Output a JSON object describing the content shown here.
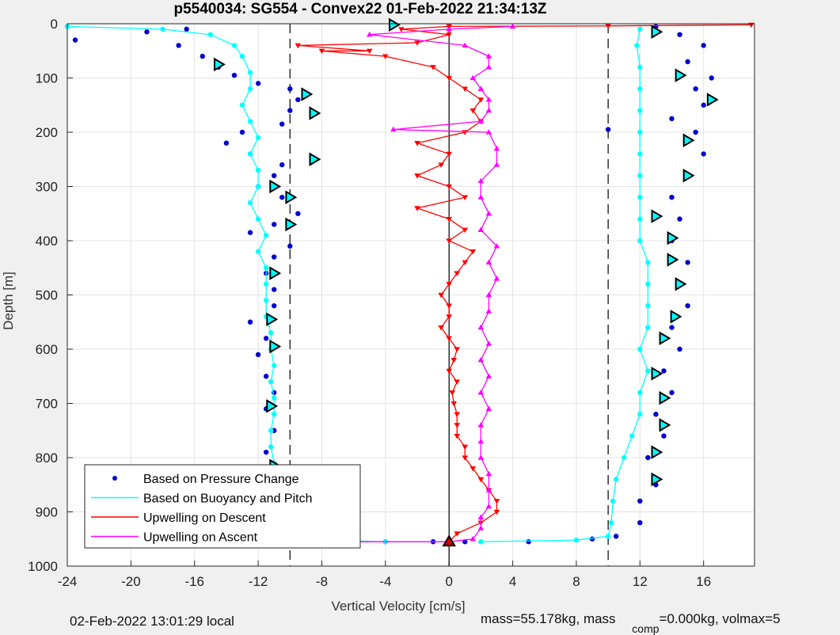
{
  "chart_data": {
    "type": "scatter",
    "title": "p5540034: SG554 - Convex22 01-Feb-2022 21:34:13Z",
    "xlabel": "Vertical Velocity [cm/s]",
    "ylabel": "Depth [m]",
    "xlim": [
      -24,
      19.2
    ],
    "ylim": [
      0,
      1000
    ],
    "y_reversed": true,
    "grid": true,
    "xticks": [
      -24,
      -20,
      -16,
      -12,
      -8,
      -4,
      0,
      4,
      8,
      12,
      16
    ],
    "yticks": [
      0,
      100,
      200,
      300,
      400,
      500,
      600,
      700,
      800,
      900,
      1000
    ],
    "reference_lines": {
      "dashed_x": [
        -10,
        10
      ],
      "solid_x": [
        0
      ]
    },
    "legend_position": "bottom-left",
    "series": [
      {
        "name": "Based on Pressure Change",
        "color": "#0000cc",
        "marker": "dot",
        "line": false,
        "descent": [
          [
            -23.5,
            30
          ],
          [
            -19,
            15
          ],
          [
            -16.5,
            10
          ],
          [
            -17,
            40
          ],
          [
            -15.5,
            60
          ],
          [
            -14.5,
            80
          ],
          [
            -13.5,
            95
          ],
          [
            -12,
            110
          ],
          [
            -10,
            120
          ],
          [
            -9.5,
            140
          ],
          [
            -10,
            160
          ],
          [
            -10.5,
            185
          ],
          [
            -13,
            200
          ],
          [
            -14,
            220
          ],
          [
            -12.5,
            240
          ],
          [
            -10.5,
            260
          ],
          [
            -11,
            280
          ],
          [
            -12,
            300
          ],
          [
            -10.5,
            320
          ],
          [
            -9.5,
            350
          ],
          [
            -11,
            370
          ],
          [
            -12.5,
            385
          ],
          [
            -10,
            410
          ],
          [
            -11,
            430
          ],
          [
            -11.5,
            460
          ],
          [
            -11,
            490
          ],
          [
            -11,
            520
          ],
          [
            -12.5,
            550
          ],
          [
            -11.5,
            580
          ],
          [
            -12,
            610
          ],
          [
            -11.5,
            650
          ],
          [
            -11,
            680
          ],
          [
            -11.5,
            710
          ],
          [
            -11,
            750
          ],
          [
            -11.5,
            790
          ],
          [
            -11,
            820
          ],
          [
            -10.5,
            850
          ],
          [
            -9.5,
            880
          ],
          [
            -10.5,
            910
          ],
          [
            -11,
            940
          ],
          [
            -8,
            955
          ],
          [
            -4,
            955
          ],
          [
            -1,
            955
          ]
        ],
        "ascent": [
          [
            1,
            955
          ],
          [
            5,
            955
          ],
          [
            9,
            950
          ],
          [
            10.5,
            945
          ],
          [
            12,
            920
          ],
          [
            12,
            880
          ],
          [
            13,
            850
          ],
          [
            12.5,
            800
          ],
          [
            13.5,
            760
          ],
          [
            13,
            720
          ],
          [
            14,
            680
          ],
          [
            13.5,
            640
          ],
          [
            14.5,
            600
          ],
          [
            14,
            560
          ],
          [
            15,
            520
          ],
          [
            14.5,
            480
          ],
          [
            15,
            440
          ],
          [
            14,
            400
          ],
          [
            14.5,
            360
          ],
          [
            14,
            320
          ],
          [
            15,
            280
          ],
          [
            16,
            240
          ],
          [
            15.5,
            200
          ],
          [
            10,
            195
          ],
          [
            14,
            175
          ],
          [
            16,
            150
          ],
          [
            15.5,
            120
          ],
          [
            16.5,
            100
          ],
          [
            15,
            70
          ],
          [
            16,
            40
          ],
          [
            14.5,
            20
          ],
          [
            13,
            5
          ]
        ]
      },
      {
        "name": "Based on Buoyancy and Pitch",
        "color": "#00ffff",
        "marker": "dot",
        "line": true,
        "descent": [
          [
            -24,
            5
          ],
          [
            -18,
            10
          ],
          [
            -15,
            20
          ],
          [
            -13.5,
            40
          ],
          [
            -13,
            60
          ],
          [
            -12.5,
            90
          ],
          [
            -12.5,
            120
          ],
          [
            -13,
            150
          ],
          [
            -12.5,
            180
          ],
          [
            -12,
            210
          ],
          [
            -12.5,
            240
          ],
          [
            -12,
            270
          ],
          [
            -12,
            300
          ],
          [
            -12.5,
            330
          ],
          [
            -12,
            360
          ],
          [
            -11.5,
            390
          ],
          [
            -12,
            420
          ],
          [
            -11.5,
            450
          ],
          [
            -11.5,
            480
          ],
          [
            -11.5,
            510
          ],
          [
            -11.5,
            540
          ],
          [
            -11.2,
            570
          ],
          [
            -11.2,
            600
          ],
          [
            -11,
            630
          ],
          [
            -11.2,
            660
          ],
          [
            -11,
            690
          ],
          [
            -11,
            720
          ],
          [
            -11.2,
            750
          ],
          [
            -11.2,
            780
          ],
          [
            -11,
            810
          ],
          [
            -11,
            840
          ],
          [
            -11.5,
            870
          ],
          [
            -11,
            900
          ],
          [
            -11,
            930
          ],
          [
            -11,
            950
          ],
          [
            -4,
            955
          ],
          [
            0,
            955
          ]
        ],
        "ascent": [
          [
            2,
            955
          ],
          [
            8,
            952
          ],
          [
            10,
            945
          ],
          [
            10.2,
            920
          ],
          [
            10.3,
            880
          ],
          [
            10.5,
            840
          ],
          [
            11,
            800
          ],
          [
            11.5,
            760
          ],
          [
            12,
            720
          ],
          [
            12,
            680
          ],
          [
            12.5,
            640
          ],
          [
            12,
            600
          ],
          [
            12.5,
            560
          ],
          [
            12.5,
            520
          ],
          [
            12.5,
            480
          ],
          [
            12.5,
            440
          ],
          [
            12,
            400
          ],
          [
            12,
            360
          ],
          [
            12,
            320
          ],
          [
            12,
            280
          ],
          [
            12,
            240
          ],
          [
            12,
            200
          ],
          [
            12,
            160
          ],
          [
            12,
            120
          ],
          [
            12,
            80
          ],
          [
            11.8,
            40
          ],
          [
            12,
            10
          ]
        ]
      },
      {
        "name": "Upwelling on Descent",
        "color": "#ff0000",
        "marker": "triangle-down",
        "line": true,
        "points": [
          [
            19,
            2
          ],
          [
            10,
            4
          ],
          [
            0,
            5
          ],
          [
            -3,
            10
          ],
          [
            0,
            20
          ],
          [
            -2,
            35
          ],
          [
            -9.5,
            40
          ],
          [
            -5,
            50
          ],
          [
            -8,
            50
          ],
          [
            -4,
            60
          ],
          [
            -1,
            80
          ],
          [
            0,
            100
          ],
          [
            1,
            120
          ],
          [
            2,
            140
          ],
          [
            1.5,
            160
          ],
          [
            2,
            180
          ],
          [
            1,
            200
          ],
          [
            -2,
            220
          ],
          [
            0,
            240
          ],
          [
            -0.5,
            260
          ],
          [
            -2,
            280
          ],
          [
            0,
            300
          ],
          [
            1,
            320
          ],
          [
            -2,
            340
          ],
          [
            0,
            360
          ],
          [
            1,
            380
          ],
          [
            0,
            400
          ],
          [
            1.5,
            420
          ],
          [
            1,
            440
          ],
          [
            0.5,
            460
          ],
          [
            0,
            480
          ],
          [
            -0.5,
            500
          ],
          [
            0,
            520
          ],
          [
            0,
            540
          ],
          [
            -0.5,
            560
          ],
          [
            0,
            580
          ],
          [
            0.5,
            600
          ],
          [
            0.3,
            620
          ],
          [
            0,
            640
          ],
          [
            0.5,
            660
          ],
          [
            0.2,
            680
          ],
          [
            0.3,
            700
          ],
          [
            0.5,
            720
          ],
          [
            0.5,
            740
          ],
          [
            0.5,
            760
          ],
          [
            1,
            780
          ],
          [
            1,
            800
          ],
          [
            1.5,
            820
          ],
          [
            2,
            840
          ],
          [
            2.5,
            860
          ],
          [
            3,
            880
          ],
          [
            3,
            900
          ],
          [
            2,
            920
          ],
          [
            0.5,
            940
          ],
          [
            0,
            955
          ]
        ]
      },
      {
        "name": "Upwelling on Ascent",
        "color": "#ff00ff",
        "marker": "triangle-up",
        "line": true,
        "points": [
          [
            -6,
            955
          ],
          [
            0,
            955
          ],
          [
            1.5,
            950
          ],
          [
            2,
            930
          ],
          [
            2,
            910
          ],
          [
            2.5,
            890
          ],
          [
            2.5,
            860
          ],
          [
            2.5,
            830
          ],
          [
            2,
            800
          ],
          [
            2,
            770
          ],
          [
            2,
            740
          ],
          [
            2.5,
            710
          ],
          [
            2,
            680
          ],
          [
            2.5,
            650
          ],
          [
            2,
            620
          ],
          [
            2.5,
            590
          ],
          [
            2,
            560
          ],
          [
            2.5,
            530
          ],
          [
            2.5,
            500
          ],
          [
            3,
            470
          ],
          [
            2.5,
            440
          ],
          [
            3,
            410
          ],
          [
            2,
            380
          ],
          [
            2.5,
            350
          ],
          [
            2,
            320
          ],
          [
            2,
            290
          ],
          [
            3,
            260
          ],
          [
            3,
            230
          ],
          [
            2.5,
            200
          ],
          [
            -3.5,
            195
          ],
          [
            2,
            180
          ],
          [
            2.5,
            160
          ],
          [
            2.5,
            140
          ],
          [
            2,
            120
          ],
          [
            1.5,
            100
          ],
          [
            2.5,
            80
          ],
          [
            2.5,
            60
          ],
          [
            1,
            40
          ],
          [
            -5,
            20
          ],
          [
            0,
            10
          ],
          [
            4,
            5
          ]
        ]
      }
    ],
    "markers": [
      {
        "name": "open triangles",
        "color": "#00ffff",
        "shape": "triangle-right",
        "points": [
          [
            -3.5,
            2
          ],
          [
            -14.5,
            75
          ],
          [
            -9,
            130
          ],
          [
            -8.5,
            165
          ],
          [
            -8.5,
            250
          ],
          [
            -11,
            300
          ],
          [
            -10,
            320
          ],
          [
            -10,
            370
          ],
          [
            -11,
            460
          ],
          [
            -11.2,
            545
          ],
          [
            -11,
            595
          ],
          [
            -11.2,
            705
          ],
          [
            -11,
            815
          ],
          [
            -9.8,
            885
          ],
          [
            -10.5,
            925
          ],
          [
            13,
            15
          ],
          [
            14.5,
            95
          ],
          [
            16.5,
            140
          ],
          [
            15,
            215
          ],
          [
            15,
            280
          ],
          [
            13,
            355
          ],
          [
            14,
            395
          ],
          [
            14,
            435
          ],
          [
            14.5,
            480
          ],
          [
            14.2,
            540
          ],
          [
            13.5,
            580
          ],
          [
            13,
            645
          ],
          [
            13.5,
            690
          ],
          [
            13.5,
            740
          ],
          [
            13,
            790
          ],
          [
            13,
            840
          ]
        ]
      },
      {
        "name": "descent end",
        "color": "#cc0000",
        "shape": "triangle-up",
        "points": [
          [
            -11.2,
            950
          ],
          [
            0,
            955
          ]
        ]
      }
    ],
    "legend": [
      {
        "label": "Based on Pressure Change",
        "color": "#0000cc",
        "style": "dot"
      },
      {
        "label": "Based on Buoyancy and Pitch",
        "color": "#00ffff",
        "style": "line"
      },
      {
        "label": "Upwelling on Descent",
        "color": "#ff0000",
        "style": "line"
      },
      {
        "label": "Upwelling on Ascent",
        "color": "#ff00ff",
        "style": "line"
      }
    ]
  },
  "footer": {
    "local_time": "02-Feb-2022 13:01:29 local",
    "mass_text": "mass=55.178kg, mass",
    "comp_sub": "comp",
    "comp_text": "=0.000kg, volmax=5"
  }
}
